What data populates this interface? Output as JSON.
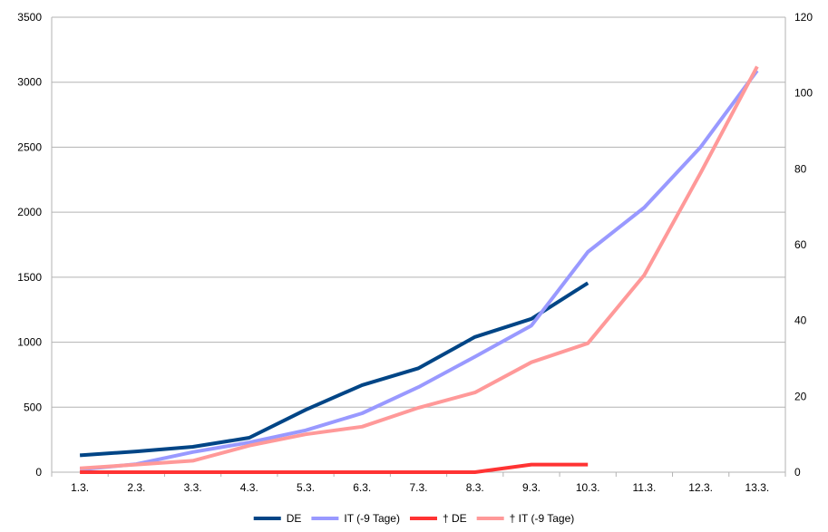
{
  "chart_data": {
    "type": "line",
    "categories": [
      "1.3.",
      "2.3.",
      "3.3.",
      "4.3.",
      "5.3.",
      "6.3.",
      "7.3.",
      "8.3.",
      "9.3.",
      "10.3.",
      "11.3.",
      "12.3.",
      "13.3."
    ],
    "y_left": {
      "lim": [
        0,
        3500
      ],
      "ticks": [
        "0",
        "500",
        "1000",
        "1500",
        "2000",
        "2500",
        "3000",
        "3500"
      ]
    },
    "y_right": {
      "lim": [
        0,
        120
      ],
      "ticks": [
        "0",
        "20",
        "40",
        "60",
        "80",
        "100",
        "120"
      ]
    },
    "grid": true,
    "legend_position": "bottom",
    "series": [
      {
        "name": "DE",
        "axis": "left",
        "color": "#004586",
        "values": [
          130,
          160,
          195,
          265,
          480,
          670,
          800,
          1040,
          1180,
          1455,
          null,
          null,
          null
        ]
      },
      {
        "name": "IT (-9 Tage)",
        "axis": "left",
        "color": "#9999ff",
        "values": [
          20,
          62,
          155,
          229,
          322,
          453,
          655,
          888,
          1128,
          1694,
          2036,
          2502,
          3089
        ]
      },
      {
        "name": "† DE",
        "axis": "right",
        "color": "#ff3333",
        "values": [
          0,
          0,
          0,
          0,
          0,
          0,
          0,
          0,
          2,
          2,
          null,
          null,
          null
        ]
      },
      {
        "name": "† IT (-9 Tage)",
        "axis": "right",
        "color": "#ff9999",
        "values": [
          1,
          2,
          3,
          7,
          10,
          12,
          17,
          21,
          29,
          34,
          52,
          79,
          107
        ]
      }
    ]
  }
}
